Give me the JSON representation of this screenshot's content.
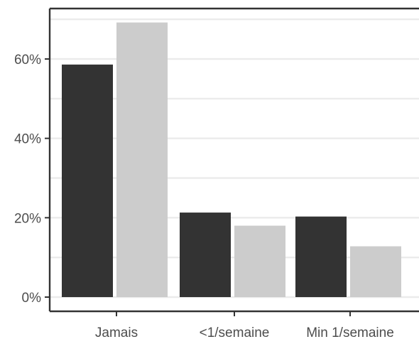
{
  "chart_data": {
    "type": "bar",
    "title": "",
    "xlabel": "",
    "ylabel": "",
    "categories": [
      "Jamais",
      "<1/semaine",
      "Min 1/semaine"
    ],
    "series": [
      {
        "values": [
          58.6,
          21.3,
          20.3
        ],
        "color": "#333333"
      },
      {
        "values": [
          69.2,
          18.0,
          12.8
        ],
        "color": "#cccccc"
      }
    ],
    "y_ticks": [
      {
        "value": 0,
        "label": "0%"
      },
      {
        "value": 20,
        "label": "20%"
      },
      {
        "value": 40,
        "label": "40%"
      },
      {
        "value": 60,
        "label": "60%"
      }
    ],
    "ylim": [
      0,
      73
    ],
    "grid": true,
    "legend": "none"
  }
}
